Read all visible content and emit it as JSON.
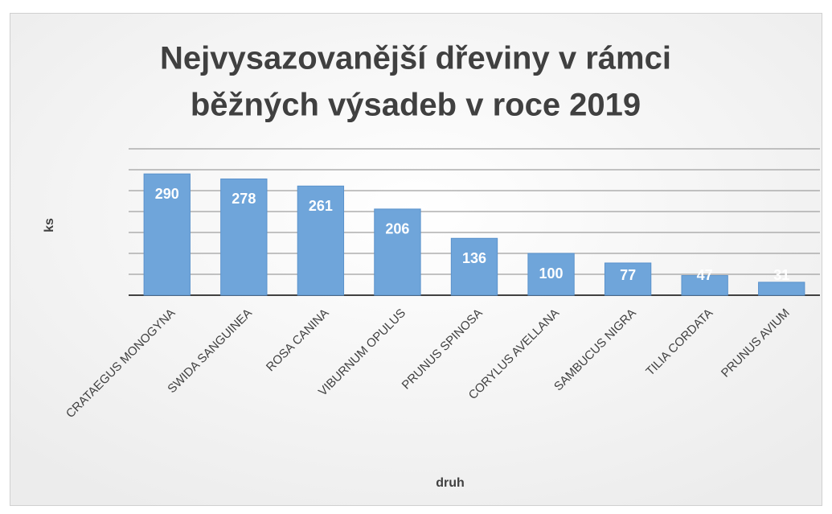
{
  "chart_data": {
    "type": "bar",
    "title": [
      "Nejvysazovanější dřeviny v rámci",
      "běžných výsadeb v roce 2019"
    ],
    "y_label": "ks",
    "x_label": "druh",
    "categories": [
      "CRATAEGUS MONOGYNA",
      "SWIDA SANGUINEA",
      "ROSA CANINA",
      "VIBURNUM OPULUS",
      "PRUNUS SPINOSA",
      "CORYLUS AVELLANA",
      "SAMBUCUS NIGRA",
      "TILIA CORDATA",
      "PRUNUS AVIUM"
    ],
    "values": [
      290,
      278,
      261,
      206,
      136,
      100,
      77,
      47,
      31
    ],
    "color": "#6fa5da",
    "ylim": [
      0,
      350
    ],
    "yticks": [
      0,
      50,
      100,
      150,
      200,
      250,
      300,
      350
    ],
    "grid": true
  }
}
